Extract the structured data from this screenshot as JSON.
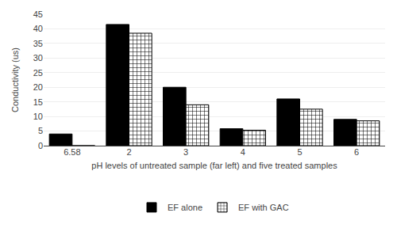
{
  "chart_data": {
    "type": "bar",
    "categories": [
      "6.58",
      "2",
      "3",
      "4",
      "5",
      "6"
    ],
    "series": [
      {
        "name": "EF alone",
        "color": "#000000",
        "values": [
          4,
          41.5,
          20,
          5.8,
          16,
          9
        ]
      },
      {
        "name": "EF with GAC",
        "color": "#ffffff",
        "values": [
          0,
          38.5,
          14,
          5.3,
          12.5,
          8.5
        ]
      }
    ],
    "xlabel": "pH levels of untreated sample (far left) and five treated samples",
    "ylabel": "Conductivity (us)",
    "ylim": [
      0,
      45
    ],
    "yticks": [
      0,
      5,
      10,
      15,
      20,
      25,
      30,
      35,
      40,
      45
    ],
    "grid": true,
    "legend": "bottom"
  }
}
